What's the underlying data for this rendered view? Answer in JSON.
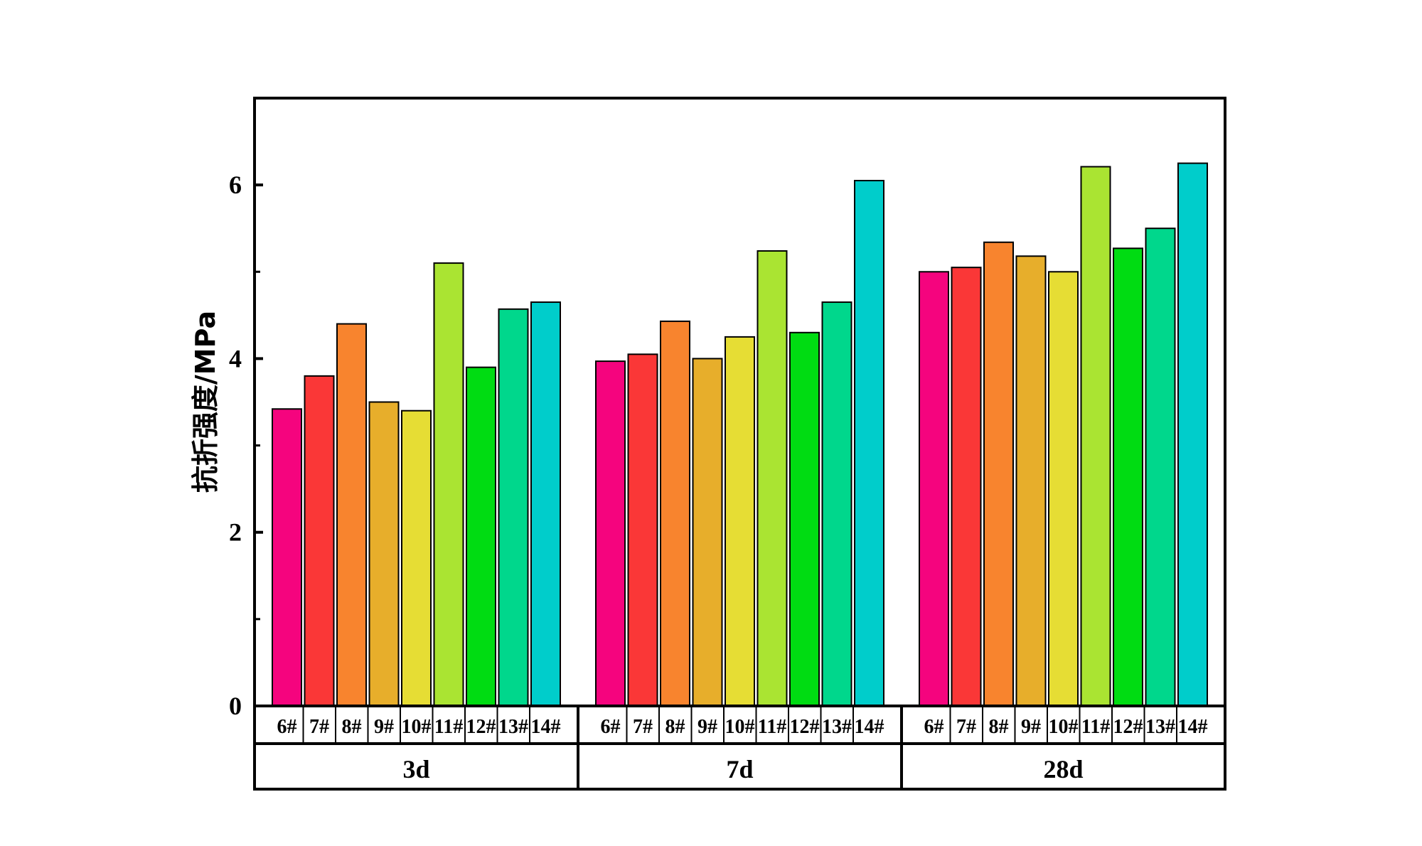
{
  "chart_data": {
    "type": "bar",
    "ylabel": "抗折强度/MPa",
    "xlabel": "",
    "ylim": [
      0,
      7
    ],
    "yticks": [
      "0",
      "2",
      "4",
      "6"
    ],
    "groups": [
      {
        "label": "3d",
        "categories": [
          "6#",
          "7#",
          "8#",
          "9#",
          "10#",
          "11#",
          "12#",
          "13#",
          "14#"
        ],
        "values": [
          3.42,
          3.8,
          4.4,
          3.5,
          3.4,
          5.1,
          3.9,
          4.57,
          4.65
        ]
      },
      {
        "label": "7d",
        "categories": [
          "6#",
          "7#",
          "8#",
          "9#",
          "10#",
          "11#",
          "12#",
          "13#",
          "14#"
        ],
        "values": [
          3.97,
          4.05,
          4.43,
          4.0,
          4.25,
          5.24,
          4.3,
          4.65,
          6.05
        ]
      },
      {
        "label": "28d",
        "categories": [
          "6#",
          "7#",
          "8#",
          "9#",
          "10#",
          "11#",
          "12#",
          "13#",
          "14#"
        ],
        "values": [
          5.0,
          5.05,
          5.34,
          5.18,
          5.0,
          6.21,
          5.27,
          5.5,
          6.25
        ]
      }
    ],
    "colors": [
      "#f5047e",
      "#fa3737",
      "#f8842e",
      "#e7ae2b",
      "#e6dd34",
      "#aae432",
      "#00dc12",
      "#00d78c",
      "#00cdcb"
    ],
    "grid": false,
    "legend": "none"
  }
}
